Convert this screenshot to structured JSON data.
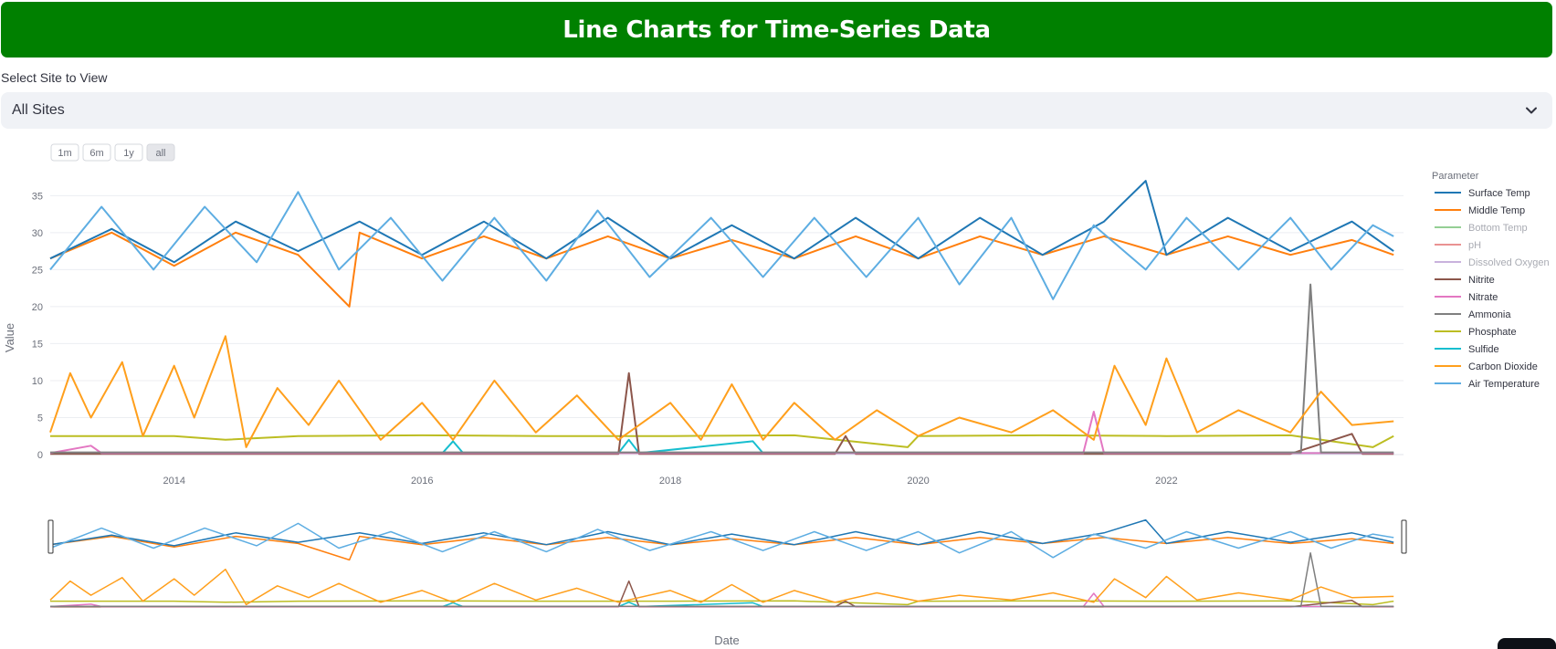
{
  "header": {
    "title": "Line Charts for Time-Series Data",
    "color": "#008000"
  },
  "site_select": {
    "label": "Select Site to View",
    "value": "All Sites"
  },
  "range_selector": {
    "buttons": [
      "1m",
      "6m",
      "1y",
      "all"
    ],
    "active": "all"
  },
  "chart_data": {
    "type": "line",
    "xlabel": "Date",
    "ylabel": "Value",
    "legend_title": "Parameter",
    "legend_position": "right",
    "x_range": [
      "2013-01-01",
      "2023-11-30"
    ],
    "x_ticks": [
      "2014",
      "2016",
      "2018",
      "2020",
      "2022"
    ],
    "y_range": [
      0,
      38
    ],
    "y_ticks": [
      0,
      5,
      10,
      15,
      20,
      25,
      30,
      35
    ],
    "grid": true,
    "rangeslider": true,
    "series": [
      {
        "name": "Surface Temp",
        "color": "#1f77b4",
        "visible": true,
        "points": [
          [
            "2013-01",
            26.5
          ],
          [
            "2013-07",
            30.5
          ],
          [
            "2014-01",
            26
          ],
          [
            "2014-07",
            31.5
          ],
          [
            "2015-01",
            27.5
          ],
          [
            "2015-07",
            31.5
          ],
          [
            "2016-01",
            27
          ],
          [
            "2016-07",
            31.5
          ],
          [
            "2017-01",
            26.5
          ],
          [
            "2017-07",
            32
          ],
          [
            "2018-01",
            26.5
          ],
          [
            "2018-07",
            31
          ],
          [
            "2019-01",
            26.5
          ],
          [
            "2019-07",
            32
          ],
          [
            "2020-01",
            26.5
          ],
          [
            "2020-07",
            32
          ],
          [
            "2021-01",
            27
          ],
          [
            "2021-07",
            31.5
          ],
          [
            "2021-11",
            37
          ],
          [
            "2022-01",
            27
          ],
          [
            "2022-07",
            32
          ],
          [
            "2023-01",
            27.5
          ],
          [
            "2023-07",
            31.5
          ],
          [
            "2023-11",
            27.5
          ]
        ]
      },
      {
        "name": "Middle Temp",
        "color": "#ff7f0e",
        "visible": true,
        "points": [
          [
            "2013-01",
            26.5
          ],
          [
            "2013-07",
            30
          ],
          [
            "2014-01",
            25.5
          ],
          [
            "2014-07",
            30
          ],
          [
            "2015-01",
            27
          ],
          [
            "2015-06",
            20
          ],
          [
            "2015-07",
            30
          ],
          [
            "2016-01",
            26.5
          ],
          [
            "2016-07",
            29.5
          ],
          [
            "2017-01",
            26.5
          ],
          [
            "2017-07",
            29.5
          ],
          [
            "2018-01",
            26.5
          ],
          [
            "2018-07",
            29
          ],
          [
            "2019-01",
            26.5
          ],
          [
            "2019-07",
            29.5
          ],
          [
            "2020-01",
            26.5
          ],
          [
            "2020-07",
            29.5
          ],
          [
            "2021-01",
            27
          ],
          [
            "2021-07",
            29.5
          ],
          [
            "2022-01",
            27
          ],
          [
            "2022-07",
            29.5
          ],
          [
            "2023-01",
            27
          ],
          [
            "2023-07",
            29
          ],
          [
            "2023-11",
            27
          ]
        ]
      },
      {
        "name": "Bottom Temp",
        "color": "#2ca02c",
        "visible": false,
        "points": []
      },
      {
        "name": "pH",
        "color": "#d62728",
        "visible": false,
        "points": []
      },
      {
        "name": "Dissolved Oxygen",
        "color": "#9467bd",
        "visible": false,
        "points": []
      },
      {
        "name": "Nitrite",
        "color": "#8c564b",
        "visible": true,
        "points": [
          [
            "2013-01",
            0.1
          ],
          [
            "2017-08",
            0.1
          ],
          [
            "2017-09",
            11
          ],
          [
            "2017-10",
            0.1
          ],
          [
            "2019-05",
            0.1
          ],
          [
            "2019-06",
            2.5
          ],
          [
            "2019-07",
            0.1
          ],
          [
            "2023-01",
            0.1
          ],
          [
            "2023-07",
            2.8
          ],
          [
            "2023-08",
            0.1
          ],
          [
            "2023-11",
            0.1
          ]
        ]
      },
      {
        "name": "Nitrate",
        "color": "#e377c2",
        "visible": true,
        "points": [
          [
            "2013-01",
            0.2
          ],
          [
            "2013-05",
            1.2
          ],
          [
            "2013-06",
            0.2
          ],
          [
            "2021-05",
            0.2
          ],
          [
            "2021-06",
            5.8
          ],
          [
            "2021-07",
            0.2
          ],
          [
            "2023-11",
            0.2
          ]
        ]
      },
      {
        "name": "Ammonia",
        "color": "#7f7f7f",
        "visible": true,
        "points": [
          [
            "2013-01",
            0.3
          ],
          [
            "2018-01",
            0.3
          ],
          [
            "2023-02",
            0.3
          ],
          [
            "2023-03",
            23
          ],
          [
            "2023-04",
            0.3
          ],
          [
            "2023-11",
            0.3
          ]
        ]
      },
      {
        "name": "Phosphate",
        "color": "#bcbd22",
        "visible": true,
        "points": [
          [
            "2013-01",
            2.5
          ],
          [
            "2014-01",
            2.5
          ],
          [
            "2014-06",
            2
          ],
          [
            "2015-01",
            2.5
          ],
          [
            "2016-01",
            2.6
          ],
          [
            "2017-01",
            2.5
          ],
          [
            "2018-01",
            2.5
          ],
          [
            "2019-01",
            2.6
          ],
          [
            "2019-12",
            1
          ],
          [
            "2020-01",
            2.5
          ],
          [
            "2021-01",
            2.6
          ],
          [
            "2022-01",
            2.5
          ],
          [
            "2023-01",
            2.6
          ],
          [
            "2023-09",
            1
          ],
          [
            "2023-11",
            2.5
          ]
        ]
      },
      {
        "name": "Sulfide",
        "color": "#17becf",
        "visible": true,
        "points": [
          [
            "2013-01",
            0.2
          ],
          [
            "2016-03",
            0.2
          ],
          [
            "2016-04",
            1.8
          ],
          [
            "2016-05",
            0.2
          ],
          [
            "2017-08",
            0.2
          ],
          [
            "2017-09",
            2
          ],
          [
            "2017-10",
            0.2
          ],
          [
            "2018-09",
            1.8
          ],
          [
            "2018-10",
            0.2
          ],
          [
            "2023-11",
            0.2
          ]
        ]
      },
      {
        "name": "Carbon Dioxide",
        "color": "#ff9f1c",
        "visible": true,
        "points": [
          [
            "2013-01",
            3
          ],
          [
            "2013-03",
            11
          ],
          [
            "2013-05",
            5
          ],
          [
            "2013-08",
            12.5
          ],
          [
            "2013-10",
            2.5
          ],
          [
            "2014-01",
            12
          ],
          [
            "2014-03",
            5
          ],
          [
            "2014-06",
            16
          ],
          [
            "2014-08",
            1
          ],
          [
            "2014-11",
            9
          ],
          [
            "2015-02",
            4
          ],
          [
            "2015-05",
            10
          ],
          [
            "2015-09",
            2
          ],
          [
            "2016-01",
            7
          ],
          [
            "2016-04",
            2
          ],
          [
            "2016-08",
            10
          ],
          [
            "2016-12",
            3
          ],
          [
            "2017-04",
            8
          ],
          [
            "2017-08",
            2
          ],
          [
            "2018-01",
            7
          ],
          [
            "2018-04",
            2
          ],
          [
            "2018-07",
            9.5
          ],
          [
            "2018-10",
            2
          ],
          [
            "2019-01",
            7
          ],
          [
            "2019-05",
            2
          ],
          [
            "2019-09",
            6
          ],
          [
            "2020-01",
            2.5
          ],
          [
            "2020-05",
            5
          ],
          [
            "2020-10",
            3
          ],
          [
            "2021-02",
            6
          ],
          [
            "2021-06",
            2
          ],
          [
            "2021-08",
            12
          ],
          [
            "2021-11",
            4
          ],
          [
            "2022-01",
            13
          ],
          [
            "2022-04",
            3
          ],
          [
            "2022-08",
            6
          ],
          [
            "2023-01",
            3
          ],
          [
            "2023-04",
            8.5
          ],
          [
            "2023-07",
            4
          ],
          [
            "2023-11",
            4.5
          ]
        ]
      },
      {
        "name": "Air Temperature",
        "color": "#5dade2",
        "visible": true,
        "points": [
          [
            "2013-01",
            25
          ],
          [
            "2013-06",
            33.5
          ],
          [
            "2013-11",
            25
          ],
          [
            "2014-04",
            33.5
          ],
          [
            "2014-09",
            26
          ],
          [
            "2015-01",
            35.5
          ],
          [
            "2015-05",
            25
          ],
          [
            "2015-10",
            32
          ],
          [
            "2016-03",
            23.5
          ],
          [
            "2016-08",
            32
          ],
          [
            "2017-01",
            23.5
          ],
          [
            "2017-06",
            33
          ],
          [
            "2017-11",
            24
          ],
          [
            "2018-05",
            32
          ],
          [
            "2018-10",
            24
          ],
          [
            "2019-03",
            32
          ],
          [
            "2019-08",
            24
          ],
          [
            "2020-01",
            32
          ],
          [
            "2020-05",
            23
          ],
          [
            "2020-10",
            32
          ],
          [
            "2021-02",
            21
          ],
          [
            "2021-06",
            31
          ],
          [
            "2021-11",
            25
          ],
          [
            "2022-03",
            32
          ],
          [
            "2022-08",
            25
          ],
          [
            "2023-01",
            32
          ],
          [
            "2023-05",
            25
          ],
          [
            "2023-09",
            31
          ],
          [
            "2023-11",
            29.5
          ]
        ]
      }
    ]
  }
}
